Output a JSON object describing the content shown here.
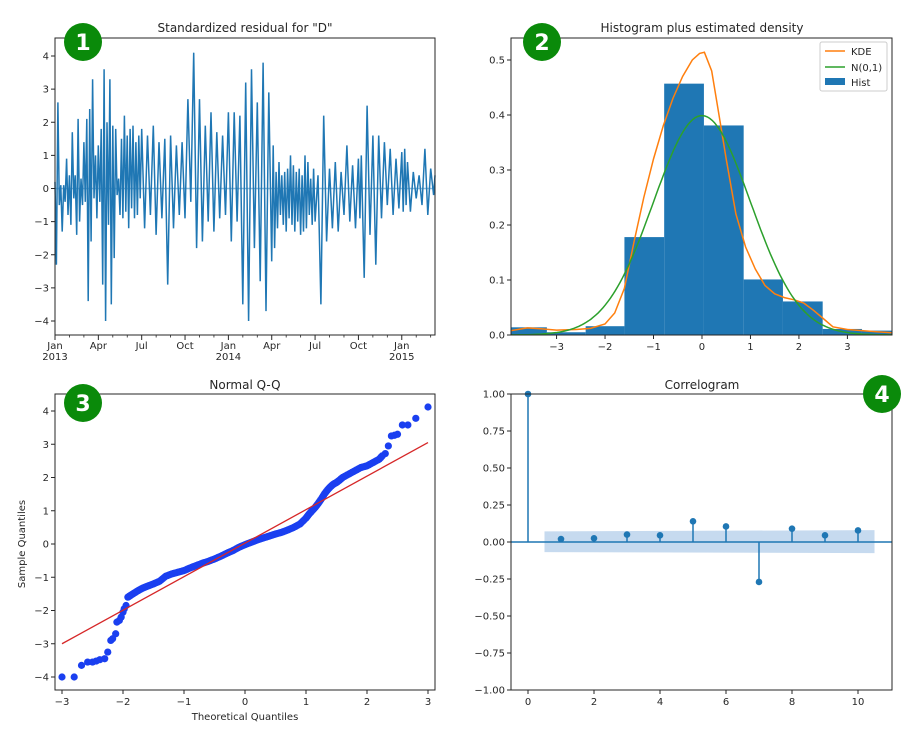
{
  "colors": {
    "series_blue": "#1f77b4",
    "kde_orange": "#ff7f0e",
    "normal_green": "#2ca02c",
    "qq_points": "#1a3ff0",
    "qq_line": "#d62728",
    "badge_green": "#0a8a0a",
    "conf_band": "#bcd4ec"
  },
  "badges": [
    "1",
    "2",
    "3",
    "4"
  ],
  "chart_data": [
    {
      "type": "line",
      "title": "Standardized residual for \"D\"",
      "xlabel": "",
      "ylabel": "",
      "ylim": [
        -4.4,
        4.55
      ],
      "yticks": [
        -4,
        -3,
        -2,
        -1,
        0,
        1,
        2,
        3,
        4
      ],
      "ytick_labels": [
        "−4",
        "−3",
        "−2",
        "−1",
        "0",
        "1",
        "2",
        "3",
        "4"
      ],
      "x_range_months": [
        0,
        26.3
      ],
      "xticks_months": [
        0,
        3,
        6,
        9,
        12,
        15,
        18,
        21,
        24
      ],
      "xtick_labels": [
        "Jan",
        "Apr",
        "Jul",
        "Oct",
        "Jan",
        "Apr",
        "Jul",
        "Oct",
        "Jan"
      ],
      "xtick_year_labels": [
        "2013",
        "",
        "",
        "",
        "2014",
        "",
        "",
        "",
        "2015"
      ],
      "baseline": 0,
      "series": [
        {
          "name": "residual",
          "x_months": [
            0.0,
            0.1,
            0.2,
            0.3,
            0.4,
            0.5,
            0.6,
            0.7,
            0.8,
            0.9,
            1.0,
            1.1,
            1.2,
            1.3,
            1.4,
            1.5,
            1.6,
            1.7,
            1.8,
            1.9,
            2.0,
            2.1,
            2.2,
            2.3,
            2.4,
            2.5,
            2.6,
            2.7,
            2.8,
            2.9,
            3.0,
            3.1,
            3.2,
            3.3,
            3.4,
            3.5,
            3.6,
            3.7,
            3.8,
            3.9,
            4.0,
            4.1,
            4.2,
            4.3,
            4.4,
            4.5,
            4.6,
            4.7,
            4.8,
            4.9,
            5.0,
            5.1,
            5.2,
            5.3,
            5.4,
            5.5,
            5.6,
            5.7,
            5.8,
            5.9,
            6.0,
            6.2,
            6.4,
            6.6,
            6.8,
            7.0,
            7.2,
            7.4,
            7.6,
            7.8,
            8.0,
            8.2,
            8.4,
            8.6,
            8.8,
            9.0,
            9.2,
            9.4,
            9.6,
            9.8,
            10.0,
            10.2,
            10.4,
            10.6,
            10.8,
            11.0,
            11.2,
            11.4,
            11.6,
            11.8,
            12.0,
            12.2,
            12.4,
            12.6,
            12.8,
            13.0,
            13.2,
            13.4,
            13.6,
            13.8,
            14.0,
            14.2,
            14.4,
            14.6,
            14.8,
            15.0,
            15.1,
            15.2,
            15.3,
            15.4,
            15.5,
            15.6,
            15.7,
            15.8,
            15.9,
            16.0,
            16.1,
            16.2,
            16.3,
            16.4,
            16.5,
            16.6,
            16.7,
            16.8,
            16.9,
            17.0,
            17.1,
            17.2,
            17.3,
            17.4,
            17.5,
            17.6,
            17.7,
            17.8,
            17.9,
            18.0,
            18.2,
            18.4,
            18.6,
            18.8,
            19.0,
            19.2,
            19.4,
            19.6,
            19.8,
            20.0,
            20.2,
            20.4,
            20.6,
            20.8,
            21.0,
            21.1,
            21.2,
            21.4,
            21.6,
            21.8,
            22.0,
            22.2,
            22.4,
            22.6,
            22.8,
            23.0,
            23.2,
            23.4,
            23.6,
            23.8,
            24.0,
            24.1,
            24.2,
            24.3,
            24.4,
            24.6,
            24.8,
            25.0,
            25.2,
            25.4,
            25.6,
            25.8,
            26.0,
            26.2,
            26.3
          ],
          "values": [
            0.2,
            -2.3,
            2.6,
            -0.5,
            0.1,
            -1.3,
            0.1,
            -0.4,
            0.9,
            -0.8,
            0.4,
            -1.1,
            1.7,
            -0.3,
            0.4,
            -1.4,
            2.1,
            -1.0,
            0.3,
            -0.5,
            1.4,
            -0.4,
            2.1,
            -3.4,
            2.4,
            -1.6,
            3.3,
            -0.3,
            1.0,
            -0.9,
            1.3,
            -0.4,
            1.8,
            -2.9,
            3.6,
            -4.0,
            2.0,
            -1.1,
            3.3,
            -3.5,
            1.9,
            -2.1,
            1.8,
            -0.2,
            0.3,
            -0.8,
            1.5,
            -0.9,
            2.2,
            -0.7,
            1.6,
            -1.2,
            1.8,
            -0.6,
            1.9,
            -0.9,
            1.4,
            -0.8,
            1.6,
            -0.3,
            1.8,
            -1.2,
            1.6,
            -0.8,
            1.9,
            -1.4,
            1.4,
            -0.9,
            1.5,
            -2.9,
            1.6,
            -1.2,
            1.3,
            -0.8,
            1.4,
            -0.9,
            2.7,
            -0.4,
            4.1,
            -1.8,
            2.7,
            -1.6,
            1.9,
            -1.0,
            2.3,
            -1.3,
            1.7,
            -0.9,
            1.6,
            -0.8,
            2.3,
            -1.6,
            2.3,
            -1.0,
            2.2,
            -3.5,
            3.2,
            -4.0,
            3.6,
            -1.8,
            2.6,
            -2.8,
            3.8,
            -3.7,
            2.9,
            -2.2,
            1.3,
            -1.8,
            0.5,
            -1.2,
            0.8,
            -0.8,
            0.4,
            -1.1,
            0.5,
            -1.3,
            0.6,
            -0.9,
            1.0,
            -1.1,
            0.7,
            -1.3,
            0.5,
            -1.0,
            0.6,
            -1.4,
            0.4,
            -1.3,
            1.0,
            -1.2,
            0.8,
            -0.8,
            0.3,
            -1.1,
            0.6,
            -1.0,
            0.4,
            -3.5,
            2.2,
            -1.6,
            0.6,
            -1.2,
            0.8,
            -1.3,
            0.5,
            -0.8,
            1.3,
            -1.0,
            0.7,
            -1.2,
            0.9,
            -0.9,
            1.0,
            -2.7,
            2.5,
            -1.4,
            1.6,
            -2.3,
            1.6,
            -0.9,
            1.4,
            -0.5,
            1.2,
            -0.8,
            0.9,
            -0.6,
            1.1,
            -0.7,
            1.2,
            -0.5,
            0.8,
            -0.7,
            0.5,
            -0.3,
            0.4,
            -0.5,
            1.2,
            -0.8,
            0.6,
            -0.2,
            0.4
          ]
        }
      ]
    },
    {
      "type": "bar",
      "title": "Histogram plus estimated density",
      "xlabel": "",
      "ylabel": "",
      "xlim": [
        -3.94,
        3.92
      ],
      "ylim": [
        0,
        0.54
      ],
      "xticks": [
        -3,
        -2,
        -1,
        0,
        1,
        2,
        3
      ],
      "xtick_labels": [
        "−3",
        "−2",
        "−1",
        "0",
        "1",
        "2",
        "3"
      ],
      "yticks": [
        0.0,
        0.1,
        0.2,
        0.3,
        0.4,
        0.5
      ],
      "ytick_labels": [
        "0.0",
        "0.1",
        "0.2",
        "0.3",
        "0.4",
        "0.5"
      ],
      "legend": [
        "KDE",
        "N(0,1)",
        "Hist"
      ],
      "legend_position": "top-right",
      "hist_bins": [
        -4.0,
        -3.2,
        -2.4,
        -1.6,
        -0.78,
        0.04,
        0.86,
        1.67,
        2.49,
        3.3,
        4.1
      ],
      "hist_values": [
        0.014,
        0.005,
        0.016,
        0.178,
        0.457,
        0.381,
        0.101,
        0.061,
        0.011,
        0.008
      ],
      "kde_x": [
        -3.94,
        -3.6,
        -3.3,
        -3.0,
        -2.6,
        -2.3,
        -2.0,
        -1.8,
        -1.6,
        -1.4,
        -1.2,
        -1.0,
        -0.8,
        -0.6,
        -0.4,
        -0.2,
        -0.05,
        0.05,
        0.2,
        0.35,
        0.5,
        0.7,
        0.9,
        1.1,
        1.3,
        1.5,
        1.7,
        1.9,
        2.1,
        2.3,
        2.5,
        2.7,
        3.0,
        3.3,
        3.6,
        3.92
      ],
      "kde_y": [
        0.008,
        0.013,
        0.011,
        0.009,
        0.01,
        0.012,
        0.02,
        0.04,
        0.085,
        0.17,
        0.25,
        0.32,
        0.38,
        0.43,
        0.47,
        0.5,
        0.512,
        0.514,
        0.48,
        0.4,
        0.32,
        0.22,
        0.16,
        0.12,
        0.09,
        0.075,
        0.068,
        0.064,
        0.058,
        0.045,
        0.03,
        0.015,
        0.01,
        0.008,
        0.006,
        0.004
      ]
    },
    {
      "type": "scatter",
      "title": "Normal Q-Q",
      "xlabel": "Theoretical Quantiles",
      "ylabel": "Sample Quantiles",
      "xlim": [
        -3.11,
        3.11
      ],
      "ylim": [
        -4.4,
        4.55
      ],
      "xticks": [
        -3,
        -2,
        -1,
        0,
        1,
        2,
        3
      ],
      "xtick_labels": [
        "−3",
        "−2",
        "−1",
        "0",
        "1",
        "2",
        "3"
      ],
      "yticks": [
        -4,
        -3,
        -2,
        -1,
        0,
        1,
        2,
        3,
        4
      ],
      "ytick_labels": [
        "−4",
        "−3",
        "−2",
        "−1",
        "0",
        "1",
        "2",
        "3",
        "4"
      ],
      "reference_line": {
        "x": [
          -3.0,
          3.0
        ],
        "y": [
          -3.0,
          3.05
        ]
      },
      "points_x": [
        -3.0,
        -2.8,
        -2.68,
        -2.58,
        -2.5,
        -2.44,
        -2.38,
        -2.3,
        -2.25,
        -2.2,
        -2.17,
        -2.12,
        -2.1,
        -2.06,
        -2.03,
        -2.0,
        -1.98,
        -1.95,
        -1.92,
        -1.88,
        -1.82,
        -1.75,
        -1.68,
        -1.6,
        -1.5,
        -1.4,
        -1.3,
        -1.2,
        -1.1,
        -1.0,
        -0.9,
        -0.8,
        -0.7,
        -0.6,
        -0.5,
        -0.4,
        -0.3,
        -0.2,
        -0.1,
        0.0,
        0.1,
        0.2,
        0.3,
        0.4,
        0.5,
        0.6,
        0.7,
        0.8,
        0.9,
        1.0,
        1.05,
        1.1,
        1.15,
        1.2,
        1.25,
        1.3,
        1.35,
        1.4,
        1.45,
        1.5,
        1.55,
        1.6,
        1.7,
        1.8,
        1.9,
        2.0,
        2.1,
        2.2,
        2.25,
        2.3,
        2.35,
        2.4,
        2.45,
        2.5,
        2.58,
        2.67,
        2.8,
        3.0
      ],
      "points_y": [
        -4.0,
        -4.0,
        -3.65,
        -3.55,
        -3.55,
        -3.52,
        -3.48,
        -3.45,
        -3.25,
        -2.9,
        -2.85,
        -2.7,
        -2.35,
        -2.3,
        -2.2,
        -2.05,
        -1.95,
        -1.85,
        -1.6,
        -1.55,
        -1.48,
        -1.4,
        -1.33,
        -1.27,
        -1.2,
        -1.12,
        -0.97,
        -0.9,
        -0.85,
        -0.8,
        -0.72,
        -0.65,
        -0.58,
        -0.52,
        -0.45,
        -0.37,
        -0.28,
        -0.2,
        -0.1,
        -0.02,
        0.05,
        0.12,
        0.18,
        0.24,
        0.3,
        0.35,
        0.42,
        0.5,
        0.6,
        0.78,
        0.9,
        1.0,
        1.1,
        1.22,
        1.35,
        1.5,
        1.62,
        1.72,
        1.8,
        1.85,
        1.92,
        2.0,
        2.1,
        2.2,
        2.3,
        2.35,
        2.45,
        2.55,
        2.65,
        2.72,
        2.95,
        3.25,
        3.27,
        3.3,
        3.58,
        3.58,
        3.78,
        4.12
      ]
    },
    {
      "type": "bar",
      "subtype": "stem",
      "title": "Correlogram",
      "xlabel": "",
      "ylabel": "",
      "xlim": [
        -0.52,
        11.03
      ],
      "ylim": [
        -1.0,
        1.0
      ],
      "xticks": [
        0,
        2,
        4,
        6,
        8,
        10
      ],
      "xtick_labels": [
        "0",
        "2",
        "4",
        "6",
        "8",
        "10"
      ],
      "yticks": [
        -1.0,
        -0.75,
        -0.5,
        -0.25,
        0.0,
        0.25,
        0.5,
        0.75,
        1.0
      ],
      "ytick_labels": [
        "−1.00",
        "−0.75",
        "−0.50",
        "−0.25",
        "0.00",
        "0.25",
        "0.50",
        "0.75",
        "1.00"
      ],
      "lags": [
        0,
        1,
        2,
        3,
        4,
        5,
        6,
        7,
        8,
        9,
        10
      ],
      "values": [
        1.0,
        0.02,
        0.025,
        0.05,
        0.045,
        0.14,
        0.105,
        -0.27,
        0.09,
        0.045,
        0.078
      ],
      "confidence_band": {
        "x": [
          0.5,
          10.5
        ],
        "upper": [
          0.072,
          0.08
        ],
        "lower": [
          -0.068,
          -0.075
        ]
      }
    }
  ]
}
